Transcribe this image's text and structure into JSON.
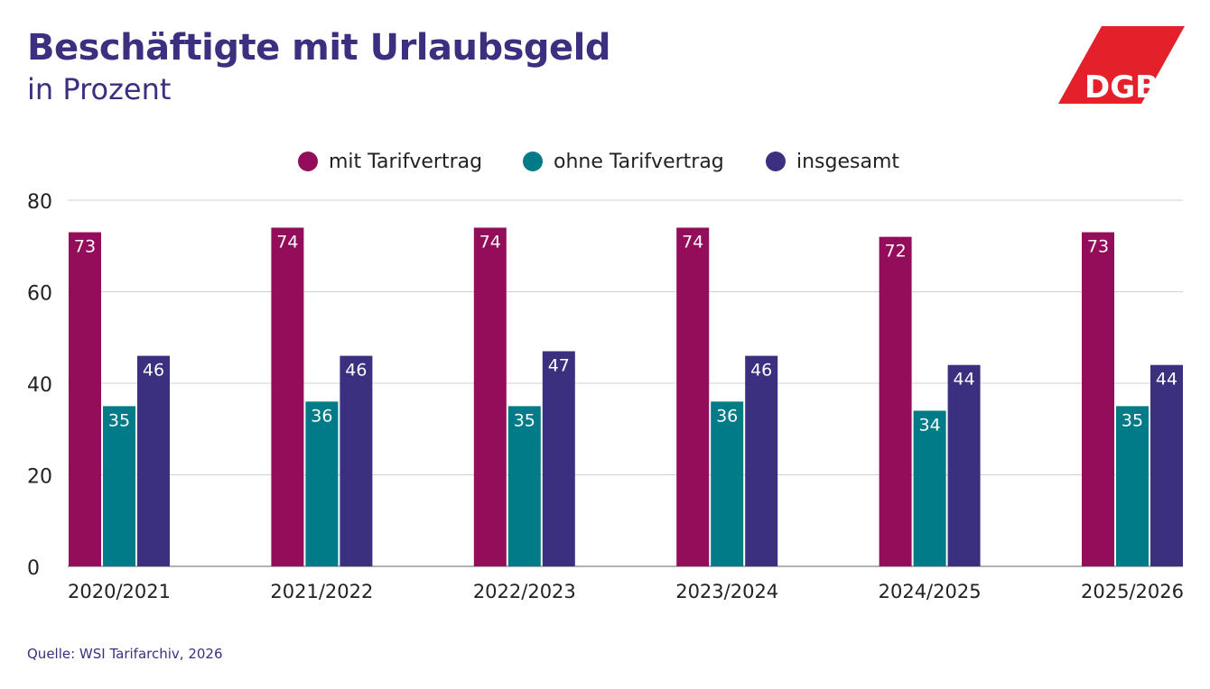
{
  "header": {
    "title": "Beschäftigte mit Urlaubsgeld",
    "subtitle": "in Prozent"
  },
  "logo": {
    "text": "DGB",
    "color": "#e4202a"
  },
  "source": "Quelle: WSI Tarifarchiv, 2026",
  "chart_data": {
    "type": "bar",
    "title": "Beschäftigte mit Urlaubsgeld",
    "subtitle": "in Prozent",
    "xlabel": "",
    "ylabel": "",
    "categories": [
      "2020/2021",
      "2021/2022",
      "2022/2023",
      "2023/2024",
      "2024/2025",
      "2025/2026"
    ],
    "series": [
      {
        "name": "mit Tarifvertrag",
        "color": "#940d5b",
        "values": [
          73,
          74,
          74,
          74,
          72,
          73
        ]
      },
      {
        "name": "ohne Tarifvertrag",
        "color": "#007b87",
        "values": [
          35,
          36,
          35,
          36,
          34,
          35
        ]
      },
      {
        "name": "insgesamt",
        "color": "#3b2f80",
        "values": [
          46,
          46,
          47,
          46,
          44,
          44
        ]
      }
    ],
    "ylim": [
      0,
      80
    ],
    "yticks": [
      0,
      20,
      40,
      60,
      80
    ],
    "grid": true,
    "legend_position": "top-center",
    "data_labels": true
  }
}
